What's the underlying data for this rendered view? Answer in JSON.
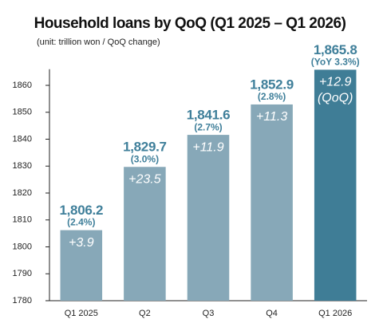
{
  "chart_data": {
    "type": "bar",
    "title": "Household loans by QoQ (Q1 2025 – Q1 2026)",
    "subtitle": "(unit: trillion won / QoQ change)",
    "categories": [
      "Q1 2025",
      "Q2",
      "Q3",
      "Q4",
      "Q1 2026"
    ],
    "values": [
      1806.2,
      1829.7,
      1841.6,
      1852.9,
      1865.8
    ],
    "value_labels": [
      "1,806.2",
      "1,829.7",
      "1,841.6",
      "1,852.9",
      "1,865.8"
    ],
    "yoy_labels": [
      "(2.4%)",
      "(3.0%)",
      "(2.7%)",
      "(2.8%)",
      "(YoY 3.3%)"
    ],
    "qoq_labels": [
      "+3.9",
      "+23.5",
      "+11.9",
      "+11.3",
      "+12.9"
    ],
    "qoq_note": "(QoQ)",
    "colors": [
      "#87a8b8",
      "#87a8b8",
      "#87a8b8",
      "#87a8b8",
      "#3f7d96"
    ],
    "ylim": [
      1780,
      1866
    ],
    "yticks": [
      1780,
      1790,
      1800,
      1810,
      1820,
      1830,
      1840,
      1850,
      1860
    ],
    "grid": false
  }
}
